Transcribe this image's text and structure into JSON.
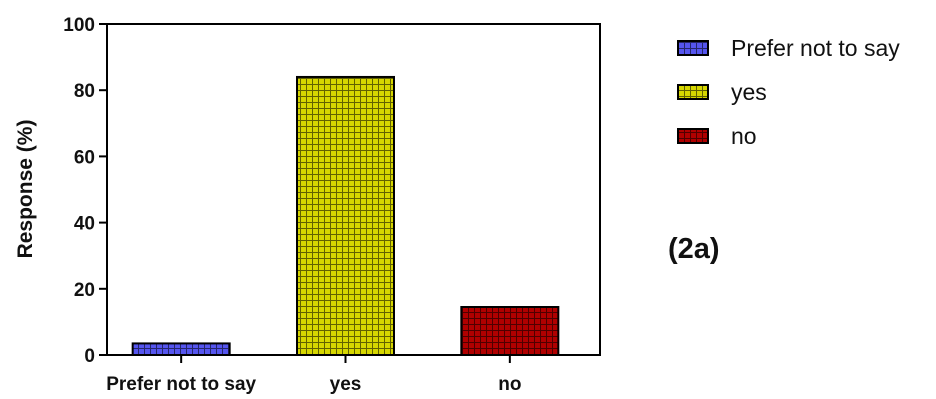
{
  "chart_data": {
    "type": "bar",
    "categories": [
      "Prefer not to say",
      "yes",
      "no"
    ],
    "values": [
      3.5,
      84,
      14.5
    ],
    "colors": [
      "#5555ee",
      "#d6d600",
      "#b00000"
    ],
    "ylabel": "Response (%)",
    "xlabel": "",
    "ylim": [
      0,
      100
    ],
    "yticks": [
      "0",
      "20",
      "40",
      "60",
      "80",
      "100"
    ],
    "legend": {
      "position": "right",
      "entries": [
        "Prefer not to say",
        "yes",
        "no"
      ]
    },
    "panel_label": "(2a)",
    "grid": false,
    "pattern": "grid-hatch"
  }
}
